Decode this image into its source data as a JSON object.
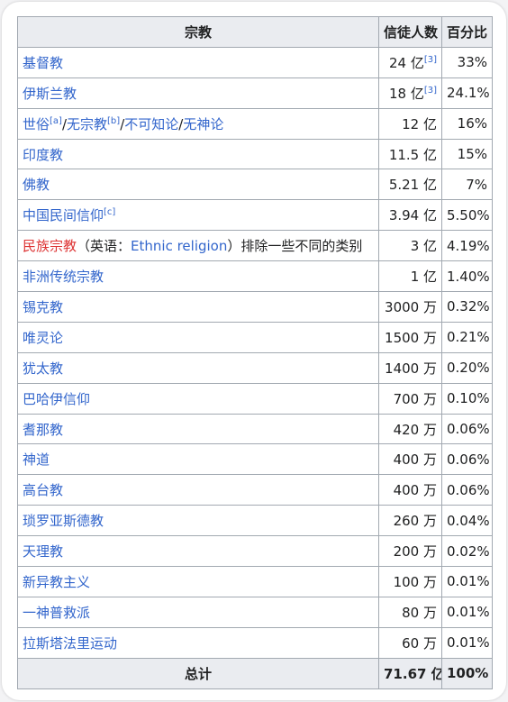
{
  "headers": {
    "religion": "宗教",
    "followers": "信徒人数",
    "percent": "百分比"
  },
  "rows": [
    {
      "name": "基督教",
      "followers": "24 亿",
      "ref": "[3]",
      "percent": "33%"
    },
    {
      "name": "伊斯兰教",
      "followers": "18 亿",
      "ref": "[3]",
      "percent": "24.1%"
    },
    {
      "name_a": "世俗",
      "sup_a": "[a]",
      "sep1": "/",
      "name_b": "无宗教",
      "sup_b": "[b]",
      "sep2": "/",
      "name_c": "不可知论",
      "sep3": "/",
      "name_d": "无神论",
      "followers": "12 亿",
      "percent": "16%"
    },
    {
      "name": "印度教",
      "followers": "11.5 亿",
      "percent": "15%"
    },
    {
      "name": "佛教",
      "followers": "5.21 亿",
      "percent": "7%"
    },
    {
      "name": "中国民间信仰",
      "sup": "[c]",
      "followers": "3.94 亿",
      "percent": "5.50%"
    },
    {
      "name_red": "民族宗教",
      "paren_open": "（英语：",
      "english": "Ethnic religion",
      "paren_close": "）排除一些不同的类别",
      "followers": "3 亿",
      "percent": "4.19%"
    },
    {
      "name": "非洲传统宗教",
      "followers": "1 亿",
      "percent": "1.40%"
    },
    {
      "name": "锡克教",
      "followers": "3000 万",
      "percent": "0.32%"
    },
    {
      "name": "唯灵论",
      "followers": "1500 万",
      "percent": "0.21%"
    },
    {
      "name": "犹太教",
      "followers": "1400 万",
      "percent": "0.20%"
    },
    {
      "name": "巴哈伊信仰",
      "followers": "700 万",
      "percent": "0.10%"
    },
    {
      "name": "耆那教",
      "followers": "420 万",
      "percent": "0.06%"
    },
    {
      "name": "神道",
      "followers": "400 万",
      "percent": "0.06%"
    },
    {
      "name": "高台教",
      "followers": "400 万",
      "percent": "0.06%"
    },
    {
      "name": "琐罗亚斯德教",
      "followers": "260 万",
      "percent": "0.04%"
    },
    {
      "name": "天理教",
      "followers": "200 万",
      "percent": "0.02%"
    },
    {
      "name": "新异教主义",
      "followers": "100 万",
      "percent": "0.01%"
    },
    {
      "name": "一神普救派",
      "followers": "80 万",
      "percent": "0.01%"
    },
    {
      "name": "拉斯塔法里运动",
      "followers": "60 万",
      "percent": "0.01%"
    }
  ],
  "total": {
    "label": "总计",
    "followers": "71.67 亿",
    "percent": "100%"
  },
  "colors": {
    "link": "#3366cc",
    "red_link": "#dd3333",
    "header_bg": "#eaecf0",
    "border": "#a2a9b1"
  }
}
